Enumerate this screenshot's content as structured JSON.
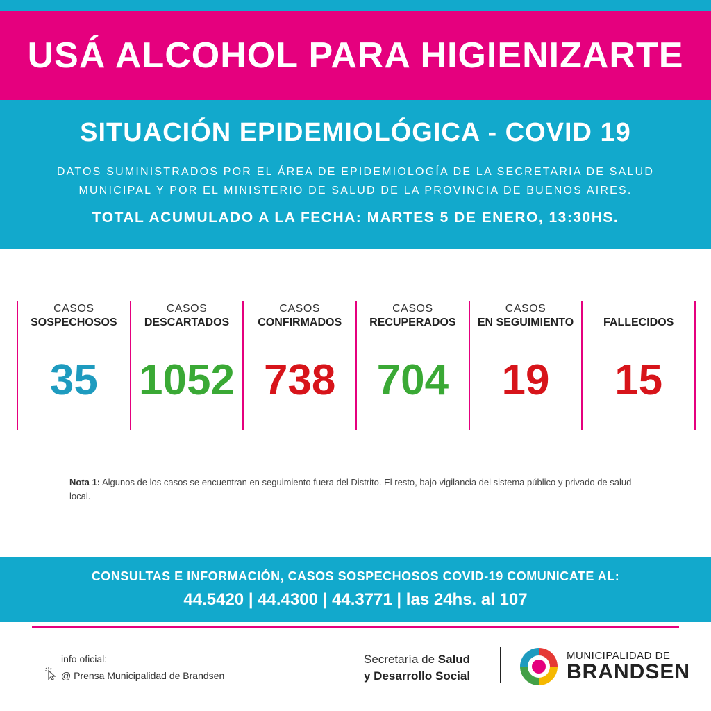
{
  "header": {
    "banner": "USÁ ALCOHOL PARA HIGIENIZARTE"
  },
  "situation": {
    "title": "SITUACIÓN EPIDEMIOLÓGICA - COVID 19",
    "source_line1": "DATOS SUMINISTRADOS POR EL ÁREA DE EPIDEMIOLOGÍA DE LA SECRETARIA DE SALUD",
    "source_line2": "MUNICIPAL Y POR EL MINISTERIO DE SALUD DE LA PROVINCIA DE BUENOS AIRES.",
    "date_line": "TOTAL ACUMULADO A LA FECHA: MARTES 5 DE ENERO, 13:30HS."
  },
  "stats": [
    {
      "label1": "CASOS",
      "label2": "SOSPECHOSOS",
      "value": "35",
      "color": "#1e9bbf"
    },
    {
      "label1": "CASOS",
      "label2": "DESCARTADOS",
      "value": "1052",
      "color": "#3aa935"
    },
    {
      "label1": "CASOS",
      "label2": "CONFIRMADOS",
      "value": "738",
      "color": "#d7141a"
    },
    {
      "label1": "CASOS",
      "label2": "RECUPERADOS",
      "value": "704",
      "color": "#3aa935"
    },
    {
      "label1": "CASOS",
      "label2": "EN SEGUIMIENTO",
      "value": "19",
      "color": "#d7141a"
    },
    {
      "label1": "",
      "label2": "FALLECIDOS",
      "value": "15",
      "color": "#d7141a"
    }
  ],
  "note": {
    "label": "Nota 1:",
    "text": "Algunos de los casos se encuentran en seguimiento fuera del Distrito. El resto, bajo vigilancia del sistema público y privado de salud local."
  },
  "contact": {
    "line1": "CONSULTAS E INFORMACIÓN, CASOS SOSPECHOSOS COVID-19 COMUNICATE AL:",
    "line2": "44.5420 | 44.4300 | 44.3771 | las 24hs. al 107"
  },
  "footer": {
    "info_title": "info oficial:",
    "info_handle": "@ Prensa Municipalidad de Brandsen",
    "sec_prefix": "Secretaría de ",
    "sec_bold1": "Salud",
    "sec_line2": "y Desarrollo Social",
    "muni_line1": "MUNICIPALIDAD DE",
    "muni_line2": "BRANDSEN"
  },
  "colors": {
    "pink": "#e5007e",
    "blue": "#12a9cc"
  },
  "icons": {
    "cursor": "cursor-click-icon",
    "logo": "municipality-logo-icon"
  }
}
